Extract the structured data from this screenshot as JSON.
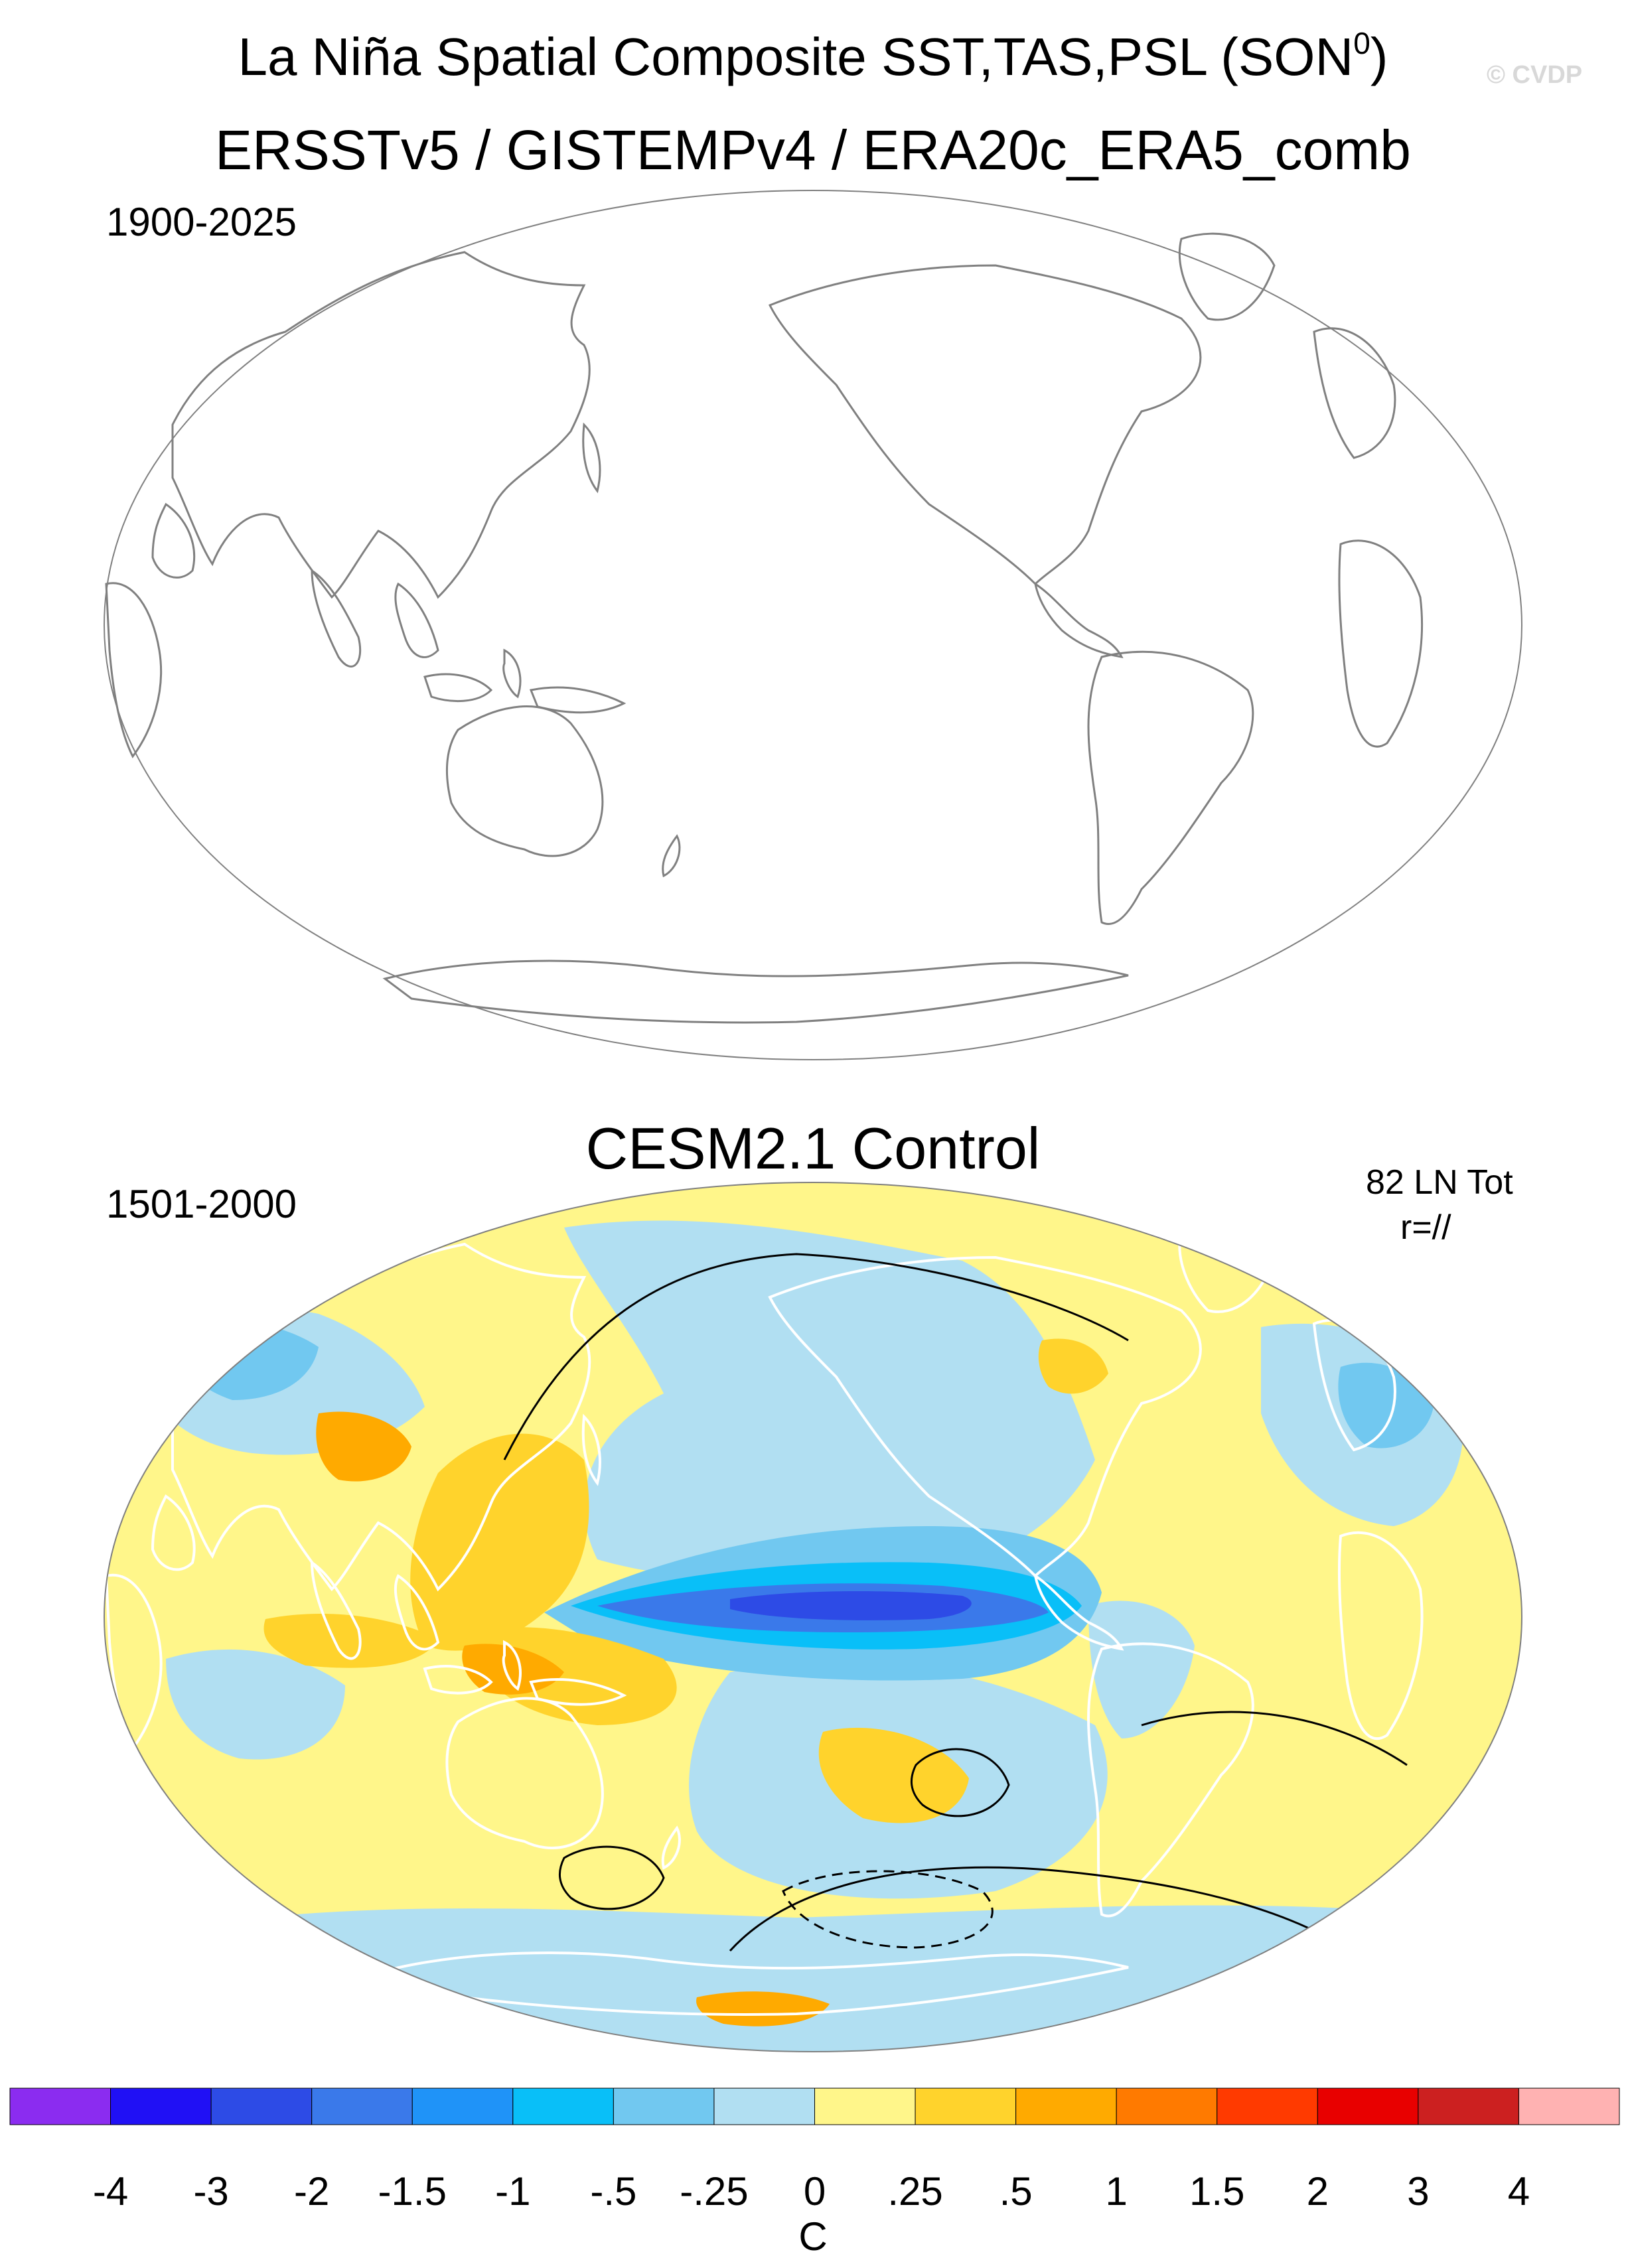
{
  "header": {
    "title": "La Niña Spatial Composite SST,TAS,PSL (SON",
    "title_sup": "0",
    "title_close": ")",
    "watermark": "© CVDP",
    "obs_datasets": "ERSSTv5 / GISTEMPv4 / ERA20c_ERA5_comb"
  },
  "panels": [
    {
      "period": "1900-2025",
      "field_shown": false
    },
    {
      "title": "CESM2.1 Control",
      "period": "1501-2000",
      "event_count": "82 LN Tot",
      "pattern_corr": "r=//",
      "field_shown": true
    }
  ],
  "colorbar": {
    "units": "C",
    "labels": [
      "-4",
      "-3",
      "-2",
      "-1.5",
      "-1",
      "-.5",
      "-.25",
      "0",
      ".25",
      ".5",
      "1",
      "1.5",
      "2",
      "3",
      "4"
    ],
    "colors": [
      "#8b2cf0",
      "#2010f5",
      "#2d4be6",
      "#3a79ea",
      "#1f93f8",
      "#09bff8",
      "#71c8f0",
      "#b1dff2",
      "#fff68a",
      "#ffd32c",
      "#ffaa00",
      "#ff7a00",
      "#ff3a00",
      "#e80000",
      "#cc2020",
      "#ffb2b2"
    ]
  },
  "colors": {
    "coast_obs": "#808080",
    "coast_model": "#ffffff",
    "psl_contour": "#000000",
    "ocean_neutral": "#fff68a"
  }
}
